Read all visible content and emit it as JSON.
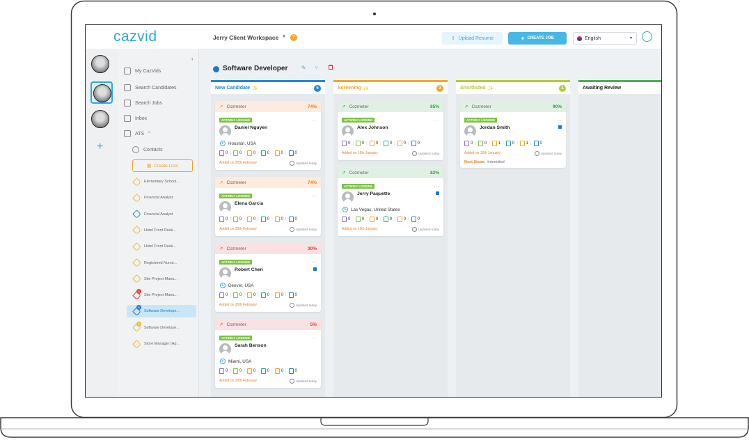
{
  "header": {
    "logo": "cazvid",
    "workspace": "Jerry Client Workspace",
    "upload": "Upload Resume",
    "create_job": "CREATE JOB",
    "language": "English"
  },
  "nav": [
    "My CazVids",
    "Search Candidates",
    "Search Jobs",
    "Inbox",
    "ATS"
  ],
  "contacts": "Contacts",
  "create_lists": "Create Lists",
  "lists": [
    {
      "label": "Elementary School..."
    },
    {
      "label": "Financial Analyst"
    },
    {
      "label": "Financial Analyst"
    },
    {
      "label": "Hotel Front Desk..."
    },
    {
      "label": "Hotel Front Desk..."
    },
    {
      "label": "Registered Nurse..."
    },
    {
      "label": "Site Project Mana..."
    },
    {
      "label": "Site Project Mana...",
      "badge": 4
    },
    {
      "label": "Software Develope...",
      "badge": 6,
      "selected": true
    },
    {
      "label": "Software Develope...",
      "badge": 2
    },
    {
      "label": "Store Manager (Ap..."
    }
  ],
  "job_title": "Software Developer",
  "columns": [
    {
      "title": "New Candidate",
      "count": 5,
      "color": "#1e88d6",
      "cards": [
        {
          "meter": "Cozmeter",
          "score": "74%",
          "score_color": "#f07c1a",
          "status": "ACTIVELY LOOKING",
          "name": "Daniel Nguyen",
          "location": "Houston, USA",
          "counts": [
            0,
            0,
            0,
            0,
            0,
            0
          ],
          "added": "Added on 20th February",
          "updated": "Updated today"
        },
        {
          "meter": "Cozmeter",
          "score": "74%",
          "score_color": "#f07c1a",
          "status": "ACTIVELY LOOKING",
          "name": "Elena Garcia",
          "counts": [
            0,
            0,
            0,
            0,
            0,
            0
          ],
          "added": "Added on 20th February",
          "updated": "Updated today"
        },
        {
          "meter": "Cozmeter",
          "score": "30%",
          "score_color": "#e53935",
          "status": "ACTIVELY LOOKING",
          "name": "Robert Chen",
          "linkedin": true,
          "location": "Denver, USA",
          "counts": [
            0,
            0,
            0,
            0,
            0,
            0
          ],
          "added": "Added on 20th February",
          "updated": "Updated today"
        },
        {
          "meter": "Cozmeter",
          "score": "5%",
          "score_color": "#e53935",
          "status": "ACTIVELY LOOKING",
          "name": "Sarah Benson",
          "location": "Miami, USA",
          "counts": [
            0,
            0,
            0,
            0,
            0,
            0
          ],
          "added": "Added on 20th February",
          "updated": "Updated today"
        }
      ]
    },
    {
      "title": "Screening",
      "count": 2,
      "color": "#f5a623",
      "cards": [
        {
          "meter": "Cozmeter",
          "score": "85%",
          "score_color": "#2ea043",
          "status": "ACTIVELY LOOKING",
          "name": "Alex Johnson",
          "counts": [
            0,
            0,
            0,
            0,
            0,
            0
          ],
          "added": "Added on 15th January",
          "updated": "Updated today"
        },
        {
          "meter": "Cozmeter",
          "score": "82%",
          "score_color": "#2ea043",
          "status": "ACTIVELY LOOKING",
          "name": "Jerry Paquette",
          "linkedin": true,
          "location": "Las Vegas, United States",
          "counts": [
            0,
            0,
            0,
            0,
            0,
            0
          ],
          "added": "Added on 15th January",
          "updated": "Updated today"
        }
      ]
    },
    {
      "title": "Shortlisted",
      "count": 1,
      "color": "#b5cc2e",
      "cards": [
        {
          "meter": "Cozmeter",
          "score": "90%",
          "score_color": "#2ea043",
          "status": "ACTIVELY LOOKING",
          "name": "Jordan Smith",
          "linkedin": true,
          "counts": [
            0,
            0,
            1,
            0,
            1,
            0
          ],
          "added": "Added on 15th January",
          "updated": "Updated today",
          "next_label": "Next Steps:",
          "next_value": "Interested"
        }
      ]
    },
    {
      "title": "Awaiting Review",
      "color": "#4caf50",
      "cards": []
    }
  ]
}
